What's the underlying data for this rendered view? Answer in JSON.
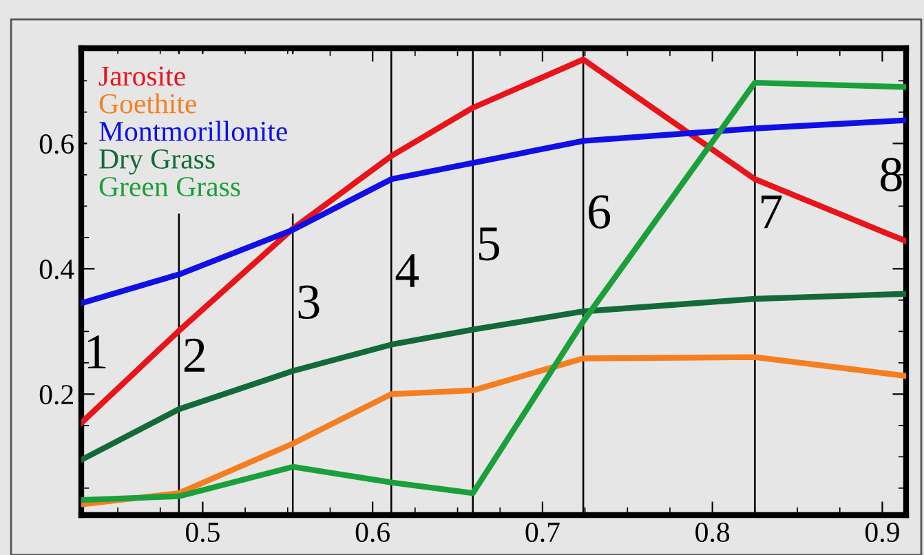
{
  "chart_data": {
    "type": "line",
    "x": [
      0.4285,
      0.486,
      0.553,
      0.611,
      0.659,
      0.724,
      0.825,
      0.914
    ],
    "series": [
      {
        "name": "Jarosite",
        "color": "#e8141a",
        "values": [
          0.154,
          0.301,
          0.464,
          0.58,
          0.657,
          0.734,
          0.543,
          0.444
        ]
      },
      {
        "name": "Goethite",
        "color": "#f57f20",
        "values": [
          0.024,
          0.042,
          0.121,
          0.2,
          0.206,
          0.257,
          0.259,
          0.229
        ]
      },
      {
        "name": "Montmorillonite",
        "color": "#1010e6",
        "values": [
          0.345,
          0.391,
          0.462,
          0.543,
          0.569,
          0.604,
          0.624,
          0.637
        ]
      },
      {
        "name": "Dry Grass",
        "color": "#136a38",
        "values": [
          0.095,
          0.176,
          0.237,
          0.279,
          0.303,
          0.332,
          0.352,
          0.36
        ]
      },
      {
        "name": "Green Grass",
        "color": "#1aa03a",
        "values": [
          0.031,
          0.037,
          0.084,
          0.059,
          0.042,
          0.316,
          0.697,
          0.69
        ]
      }
    ],
    "xlim": [
      0.4285,
      0.914
    ],
    "ylim": [
      0.007,
      0.752
    ],
    "xticks": [
      0.5,
      0.6,
      0.7,
      0.8,
      0.9
    ],
    "yticks": [
      0.2,
      0.4,
      0.6
    ],
    "ref_lines": [
      {
        "axis": "x",
        "value": 0.486,
        "color": "#000000"
      },
      {
        "axis": "x",
        "value": 0.553,
        "color": "#000000"
      },
      {
        "axis": "x",
        "value": 0.611,
        "color": "#000000"
      },
      {
        "axis": "x",
        "value": 0.659,
        "color": "#000000"
      },
      {
        "axis": "x",
        "value": 0.724,
        "color": "#000000"
      },
      {
        "axis": "x",
        "value": 0.825,
        "color": "#000000"
      }
    ],
    "annotations": [
      "1",
      {
        "text": "2",
        "x": 0.488,
        "y": 0.255
      },
      {
        "text": "3",
        "x": 0.555,
        "y": 0.34
      },
      {
        "text": "4",
        "x": 0.613,
        "y": 0.39
      },
      {
        "text": "5",
        "x": 0.661,
        "y": 0.433
      },
      {
        "text": "6",
        "x": 0.726,
        "y": 0.484
      },
      {
        "text": "7",
        "x": 0.827,
        "y": 0.484
      },
      "8"
    ],
    "legend": "top left",
    "grid": false,
    "marker": "none",
    "line_style": "solid"
  }
}
